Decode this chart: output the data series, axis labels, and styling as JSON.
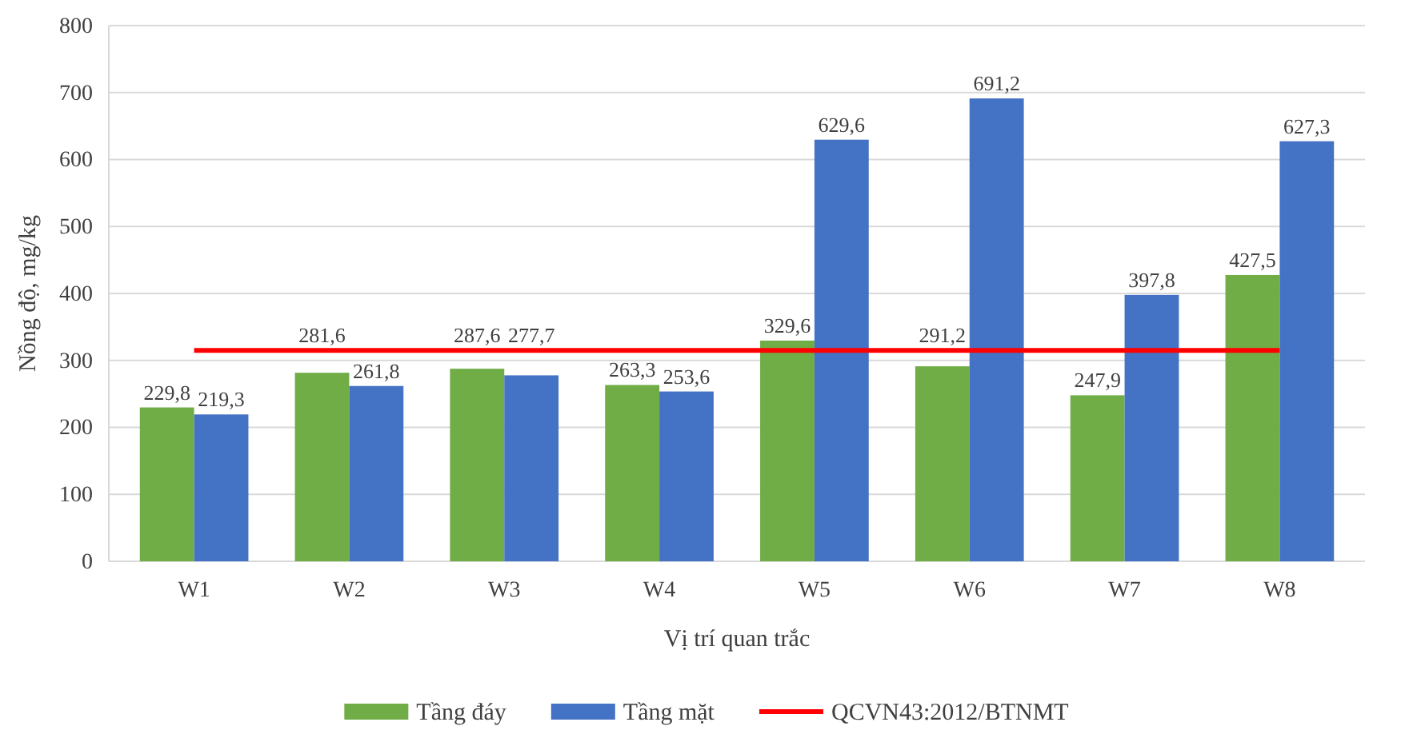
{
  "chart_data": {
    "type": "bar",
    "xlabel": "Vị trí quan trắc",
    "ylabel": "Nồng độ, mg/kg",
    "categories": [
      "W1",
      "W2",
      "W3",
      "W4",
      "W5",
      "W6",
      "W7",
      "W8"
    ],
    "series": [
      {
        "name": "Tầng đáy",
        "color": "#70ad47",
        "values": [
          229.8,
          281.6,
          287.6,
          263.3,
          329.6,
          291.2,
          247.9,
          427.5
        ],
        "value_labels": [
          "229,8",
          "281,6",
          "287,6",
          "263,3",
          "329,6",
          "291,2",
          "247,9",
          "427,5"
        ]
      },
      {
        "name": "Tầng mặt",
        "color": "#4472c4",
        "values": [
          219.3,
          261.8,
          277.7,
          253.6,
          629.6,
          691.2,
          397.8,
          627.3
        ],
        "value_labels": [
          "219,3",
          "261,8",
          "277,7",
          "253,6",
          "629,6",
          "691,2",
          "397,8",
          "627,3"
        ]
      },
      {
        "name": "QCVN43:2012/BTNMT",
        "type": "line",
        "color": "#ff0000",
        "values": [
          315,
          315,
          315,
          315,
          315,
          315,
          315,
          315
        ]
      }
    ],
    "ylim": [
      0,
      800
    ],
    "yticks": [
      0,
      100,
      200,
      300,
      400,
      500,
      600,
      700,
      800
    ],
    "grid": "y",
    "legend": "bottom",
    "marker": "none"
  }
}
